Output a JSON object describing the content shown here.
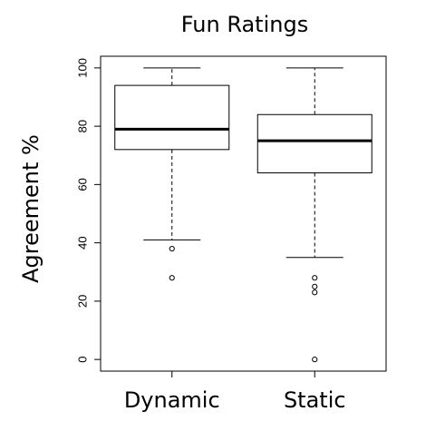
{
  "chart_data": {
    "type": "box",
    "title": "Fun Ratings",
    "ylabel": "Agreement %",
    "xlabel": "",
    "ylim": [
      -4,
      104
    ],
    "yticks": [
      0,
      20,
      40,
      60,
      80,
      100
    ],
    "ytick_labels": [
      "0",
      "20",
      "40",
      "60",
      "80",
      "100"
    ],
    "grid": false,
    "categories": [
      "Dynamic",
      "Static"
    ],
    "boxes": [
      {
        "category": "Dynamic",
        "whisker_low": 41,
        "q1": 72,
        "median": 79,
        "q3": 94,
        "whisker_high": 100,
        "outliers": [
          38,
          28
        ]
      },
      {
        "category": "Static",
        "whisker_low": 35,
        "q1": 64,
        "median": 75,
        "q3": 84,
        "whisker_high": 100,
        "outliers": [
          28,
          25,
          23,
          0
        ]
      }
    ]
  }
}
